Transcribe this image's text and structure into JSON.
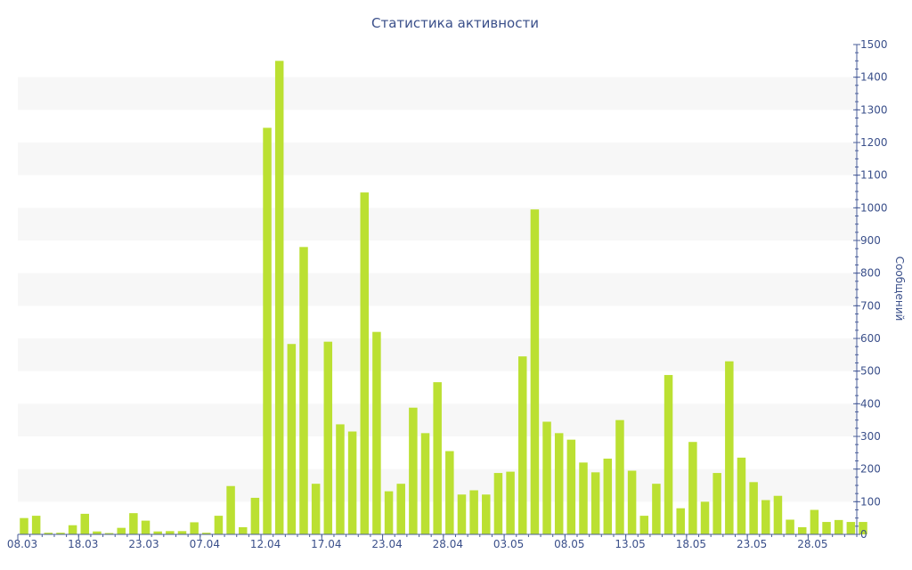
{
  "chart_data": {
    "type": "bar",
    "title": "Статистика активности",
    "xlabel": "",
    "ylabel": "Сообщений",
    "ylim": [
      0,
      1500
    ],
    "y_axis_position": "right",
    "y_ticks": [
      0,
      100,
      200,
      300,
      400,
      500,
      600,
      700,
      800,
      900,
      1000,
      1100,
      1200,
      1300,
      1400,
      1500
    ],
    "x_tick_labels": [
      "08.03",
      "18.03",
      "23.03",
      "07.04",
      "12.04",
      "17.04",
      "23.04",
      "28.04",
      "03.05",
      "08.05",
      "13.05",
      "18.05",
      "23.05",
      "28.05"
    ],
    "x_tick_bar_index": [
      0,
      5,
      10,
      15,
      20,
      25,
      30,
      35,
      40,
      45,
      50,
      55,
      60,
      65
    ],
    "values": [
      50,
      57,
      5,
      5,
      28,
      63,
      9,
      4,
      20,
      65,
      42,
      9,
      10,
      10,
      37,
      5,
      57,
      148,
      22,
      112,
      1245,
      1450,
      583,
      880,
      155,
      590,
      337,
      315,
      1047,
      620,
      132,
      155,
      388,
      310,
      466,
      255,
      122,
      135,
      122,
      188,
      192,
      545,
      995,
      345,
      310,
      290,
      220,
      190,
      232,
      350,
      195,
      57,
      155,
      488,
      80,
      283,
      100,
      188,
      530,
      235,
      160,
      105,
      118,
      45,
      22,
      75,
      38,
      44,
      38,
      38
    ],
    "colors": {
      "bar": "#bbe032",
      "stripe": "#f7f7f7",
      "axis": "#4a5e9a",
      "text": "#3a4f8a"
    },
    "grid": "alternating-bands"
  }
}
